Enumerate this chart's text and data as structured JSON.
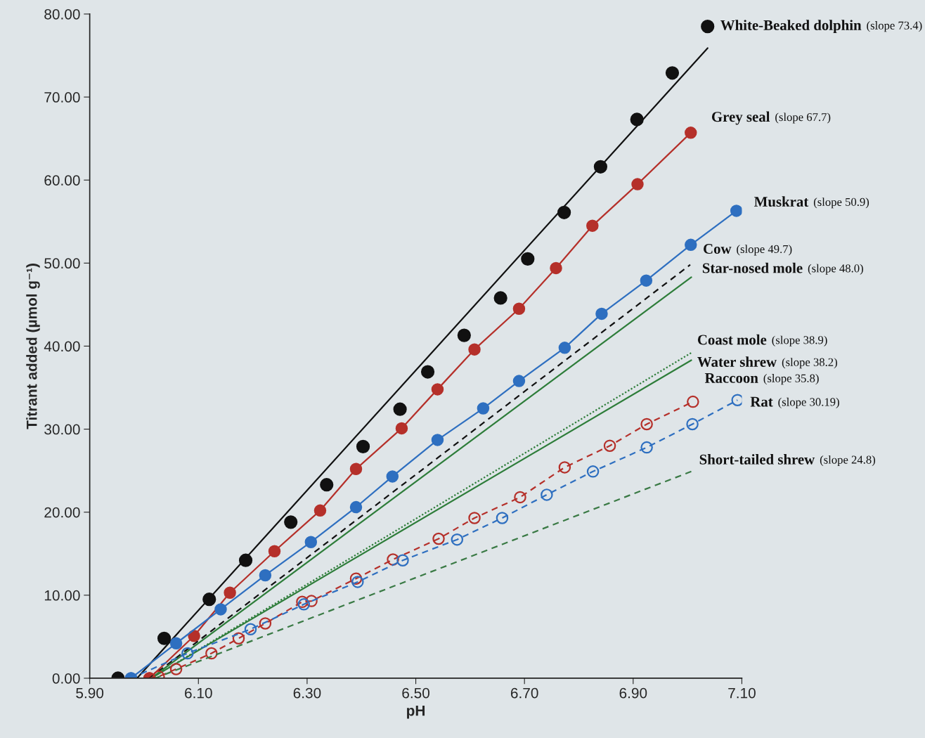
{
  "chart_data": {
    "type": "line",
    "xlabel": "pH",
    "ylabel": "Titrant added (µmol g⁻¹)",
    "xlim": [
      5.9,
      7.1
    ],
    "ylim": [
      0,
      80
    ],
    "xticks": [
      {
        "value": 5.9,
        "label": "5.90"
      },
      {
        "value": 6.1,
        "label": "6.10"
      },
      {
        "value": 6.3,
        "label": "6.30"
      },
      {
        "value": 6.5,
        "label": "6.50"
      },
      {
        "value": 6.7,
        "label": "6.70"
      },
      {
        "value": 6.9,
        "label": "6.90"
      },
      {
        "value": 7.1,
        "label": "7.10"
      }
    ],
    "yticks": [
      {
        "value": 0,
        "label": "0.00"
      },
      {
        "value": 10,
        "label": "10.00"
      },
      {
        "value": 20,
        "label": "20.00"
      },
      {
        "value": 30,
        "label": "30.00"
      },
      {
        "value": 40,
        "label": "40.00"
      },
      {
        "value": 50,
        "label": "50.00"
      },
      {
        "value": 60,
        "label": "60.00"
      },
      {
        "value": 70,
        "label": "70.00"
      },
      {
        "value": 80,
        "label": "80.00"
      }
    ],
    "grid": false,
    "legend": false,
    "series": [
      {
        "type": "scatter",
        "name": "White-Beaked dolphin",
        "color": "#111111",
        "marker": "circle",
        "x": [
          5.952,
          6.037,
          6.12,
          6.187,
          6.27,
          6.336,
          6.403,
          6.471,
          6.522,
          6.589,
          6.656,
          6.706,
          6.773,
          6.84,
          6.907,
          6.972,
          7.037
        ],
        "values": [
          0,
          4.8,
          9.5,
          14.2,
          18.8,
          23.3,
          27.9,
          32.4,
          36.9,
          41.3,
          45.8,
          50.5,
          56.1,
          61.6,
          67.3,
          72.9,
          78.5
        ]
      },
      {
        "color": "#111111",
        "marker": "none",
        "line_style": "solid",
        "x": [
          5.987,
          7.037
        ],
        "values": [
          0,
          75.9
        ]
      },
      {
        "name": "Grey seal",
        "color": "#b5302a",
        "marker": "circle",
        "line_style": "solid",
        "x": [
          6.01,
          6.092,
          6.158,
          6.24,
          6.324,
          6.39,
          6.474,
          6.54,
          6.608,
          6.69,
          6.758,
          6.825,
          6.908,
          7.006
        ],
        "values": [
          0,
          5.1,
          10.3,
          15.3,
          20.2,
          25.2,
          30.1,
          34.8,
          39.6,
          44.5,
          49.4,
          54.5,
          59.5,
          65.7
        ]
      },
      {
        "name": "Muskrat",
        "color": "#2e6fc0",
        "marker": "circle",
        "line_style": "solid",
        "x": [
          5.976,
          6.059,
          6.141,
          6.223,
          6.307,
          6.39,
          6.457,
          6.54,
          6.624,
          6.69,
          6.774,
          6.842,
          6.924,
          7.006,
          7.09
        ],
        "values": [
          0,
          4.2,
          8.3,
          12.4,
          16.4,
          20.6,
          24.3,
          28.7,
          32.5,
          35.8,
          39.8,
          43.9,
          47.9,
          52.2,
          56.3
        ]
      },
      {
        "name": "Cow",
        "color": "#111111",
        "marker": "none",
        "line_style": "dashed",
        "x": [
          6.01,
          7.005
        ],
        "values": [
          0,
          49.8
        ]
      },
      {
        "name": "Star-nosed mole",
        "color": "#2e7d3a",
        "marker": "none",
        "line_style": "solid",
        "x": [
          6.013,
          7.007
        ],
        "values": [
          0,
          48.3
        ]
      },
      {
        "name": "Coast mole",
        "color": "#2e7d3a",
        "marker": "none",
        "line_style": "dotted",
        "x": [
          6.013,
          7.007
        ],
        "values": [
          0,
          39.2
        ]
      },
      {
        "name": "Water shrew",
        "color": "#2e7d3a",
        "marker": "none",
        "line_style": "solid",
        "x": [
          6.013,
          7.007
        ],
        "values": [
          0,
          38.3
        ]
      },
      {
        "name": "Raccoon",
        "color": "#b5302a",
        "marker": "open circle",
        "line_style": "dashed",
        "x": [
          6.01,
          6.027,
          6.059,
          6.124,
          6.174,
          6.223,
          6.291,
          6.308,
          6.39,
          6.458,
          6.542,
          6.608,
          6.692,
          6.774,
          6.857,
          6.925,
          7.01
        ],
        "values": [
          0,
          0.2,
          1.1,
          3.0,
          4.8,
          6.6,
          9.2,
          9.3,
          12.0,
          14.3,
          16.8,
          19.3,
          21.8,
          25.4,
          28.0,
          30.6,
          33.3
        ]
      },
      {
        "name": "Rat",
        "color": "#2e6fc0",
        "marker": "open circle",
        "line_style": "dashed",
        "x": [
          5.976,
          6.08,
          6.196,
          6.294,
          6.393,
          6.476,
          6.576,
          6.659,
          6.741,
          6.826,
          6.925,
          7.009,
          7.092
        ],
        "values": [
          0,
          3.0,
          5.9,
          8.9,
          11.6,
          14.2,
          16.7,
          19.3,
          22.1,
          24.9,
          27.8,
          30.6,
          33.5
        ]
      },
      {
        "name": "Short-tailed shrew",
        "color": "#3a7a45",
        "marker": "none",
        "line_style": "dashed",
        "x": [
          6.02,
          7.007
        ],
        "values": [
          0,
          24.9
        ]
      }
    ],
    "annotations": [
      "(slope 73.4)",
      "(slope 67.7)",
      "(slope 50.9)",
      "(slope 49.7)",
      "(slope 48.0)",
      "(slope 38.9)",
      "(slope 38.2)",
      "(slope 35.8)",
      "(slope 30.19)",
      "(slope 24.8)"
    ]
  }
}
